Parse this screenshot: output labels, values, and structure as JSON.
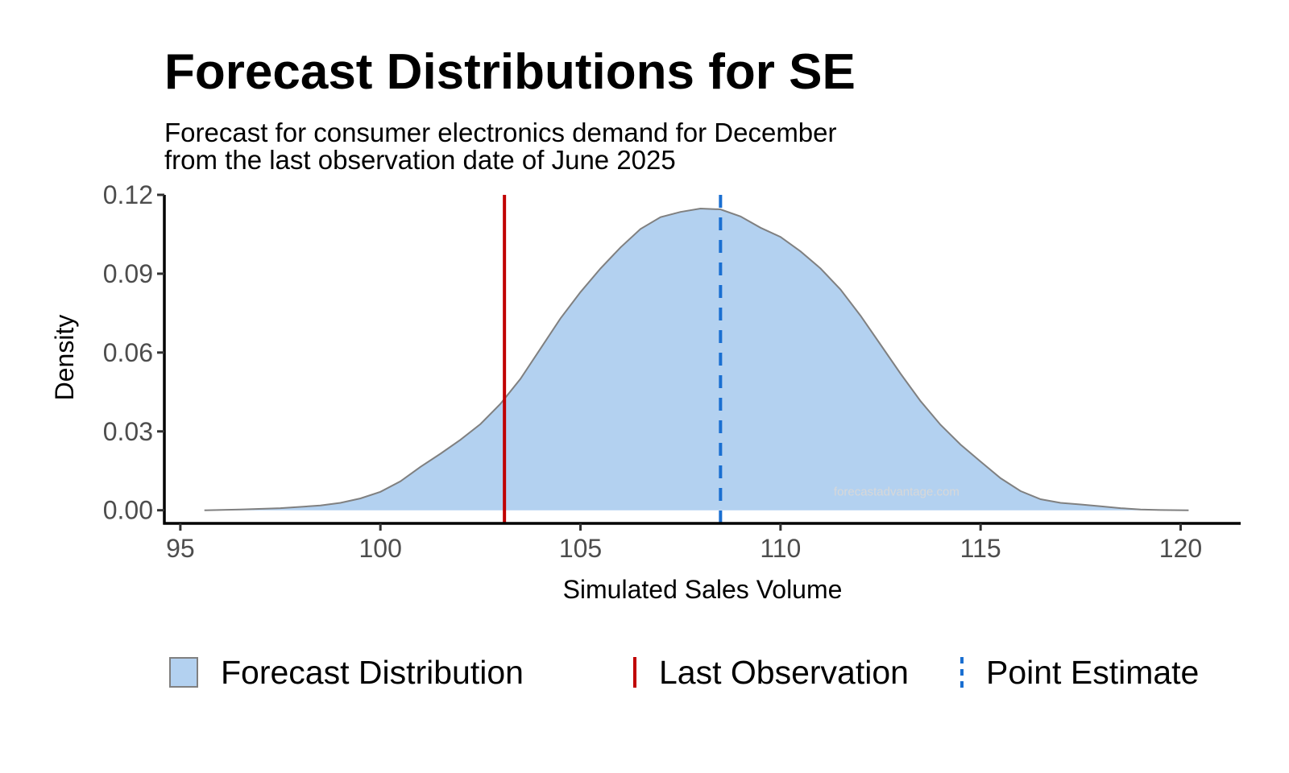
{
  "chart_data": {
    "type": "area",
    "title": "Forecast Distributions for SE",
    "subtitle": [
      "Forecast for consumer electronics demand for December",
      "from the last observation date of June 2025"
    ],
    "xlabel": "Simulated Sales Volume",
    "ylabel": "Density",
    "xlim": [
      94.6,
      121.5
    ],
    "ylim": [
      -0.005,
      0.12
    ],
    "x_ticks": [
      95,
      100,
      105,
      110,
      115,
      120
    ],
    "y_ticks": [
      0.0,
      0.03,
      0.06,
      0.09,
      0.12
    ],
    "y_tick_labels": [
      "0.00",
      "0.03",
      "0.06",
      "0.09",
      "0.12"
    ],
    "grid": false,
    "legend_position": "bottom",
    "series": [
      {
        "name": "Forecast Distribution",
        "kind": "density",
        "color": "#b3d1f0",
        "outline": "#808080",
        "x": [
          95.6,
          96.5,
          97.5,
          98.5,
          99.0,
          99.5,
          100.0,
          100.5,
          101.0,
          101.5,
          102.0,
          102.5,
          103.0,
          103.5,
          104.0,
          104.5,
          105.0,
          105.5,
          106.0,
          106.5,
          107.0,
          107.5,
          108.0,
          108.5,
          109.0,
          109.5,
          110.0,
          110.5,
          111.0,
          111.5,
          112.0,
          112.5,
          113.0,
          113.5,
          114.0,
          114.5,
          115.0,
          115.5,
          116.0,
          116.5,
          117.0,
          117.5,
          118.0,
          118.5,
          119.0,
          119.5,
          120.2
        ],
        "y": [
          0.0,
          0.0003,
          0.0008,
          0.0018,
          0.0028,
          0.0045,
          0.007,
          0.011,
          0.0165,
          0.0215,
          0.0268,
          0.0328,
          0.0405,
          0.05,
          0.0615,
          0.073,
          0.083,
          0.092,
          0.1,
          0.107,
          0.1115,
          0.1135,
          0.1148,
          0.1145,
          0.1118,
          0.1075,
          0.104,
          0.0985,
          0.092,
          0.084,
          0.074,
          0.063,
          0.052,
          0.0415,
          0.0325,
          0.025,
          0.0185,
          0.0122,
          0.0073,
          0.0042,
          0.0028,
          0.0022,
          0.0015,
          0.0008,
          0.0003,
          0.0001,
          0.0
        ]
      },
      {
        "name": "Last Observation",
        "kind": "vline",
        "x": 103.1,
        "color": "#c00000",
        "dash": "solid"
      },
      {
        "name": "Point Estimate",
        "kind": "vline",
        "x": 108.5,
        "color": "#1a6fd1",
        "dash": "dashed"
      }
    ],
    "watermark": "forecastadvantage.com"
  },
  "legend": [
    {
      "label": "Forecast Distribution"
    },
    {
      "label": "Last Observation"
    },
    {
      "label": "Point Estimate"
    }
  ]
}
